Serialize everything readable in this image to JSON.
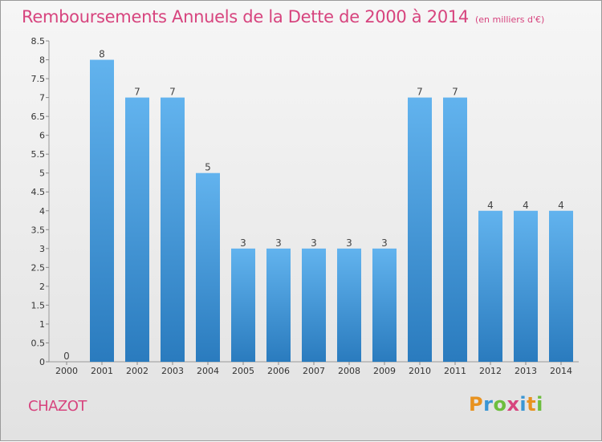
{
  "title": "Remboursements Annuels de la Dette de 2000 à 2014",
  "subtitle": "(en milliers d'€)",
  "commune": "CHAZOT",
  "logo": {
    "letters": [
      {
        "ch": "P",
        "color": "#e8921f"
      },
      {
        "ch": "r",
        "color": "#3a96d4"
      },
      {
        "ch": "o",
        "color": "#6dbe3e"
      },
      {
        "ch": "x",
        "color": "#d7447e"
      },
      {
        "ch": "i",
        "color": "#3a96d4"
      },
      {
        "ch": "t",
        "color": "#e8921f"
      },
      {
        "ch": "i",
        "color": "#6dbe3e"
      }
    ]
  },
  "colors": {
    "bar_dark": "#2a7bbe",
    "bar_light": "#62b3ee",
    "title": "#d7447e"
  },
  "chart_data": {
    "type": "bar",
    "title": "Remboursements Annuels de la Dette de 2000 à 2014",
    "categories": [
      "2000",
      "2001",
      "2002",
      "2003",
      "2004",
      "2005",
      "2006",
      "2007",
      "2008",
      "2009",
      "2010",
      "2011",
      "2012",
      "2013",
      "2014"
    ],
    "values": [
      0,
      8,
      7,
      7,
      5,
      3,
      3,
      3,
      3,
      3,
      7,
      7,
      4,
      4,
      4
    ],
    "data_labels": [
      "0",
      "8",
      "7",
      "7",
      "5",
      "3",
      "3",
      "3",
      "3",
      "3",
      "7",
      "7",
      "4",
      "4",
      "4"
    ],
    "ylim": [
      0,
      8.5
    ],
    "yticks": [
      0,
      0.5,
      1,
      1.5,
      2,
      2.5,
      3,
      3.5,
      4,
      4.5,
      5,
      5.5,
      6,
      6.5,
      7,
      7.5,
      8,
      8.5
    ],
    "ytick_labels": [
      "0",
      "0.5",
      "1",
      "1.5",
      "2",
      "2.5",
      "3",
      "3.5",
      "4",
      "4.5",
      "5",
      "5.5",
      "6",
      "6.5",
      "7",
      "7.5",
      "8",
      "8.5"
    ],
    "grid": false,
    "xlabel": "",
    "ylabel": ""
  }
}
